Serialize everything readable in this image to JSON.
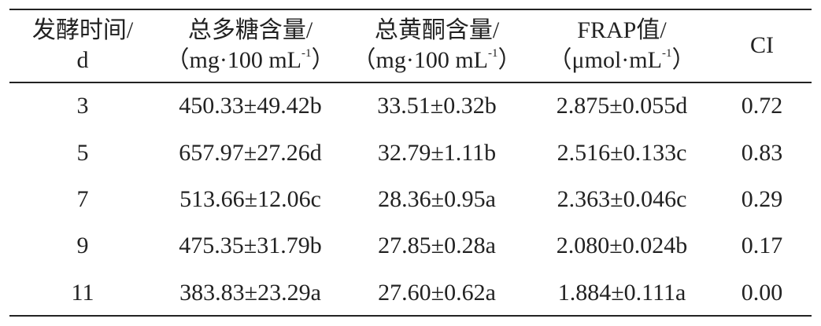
{
  "table": {
    "header": [
      {
        "lines": [
          {
            "text": "发酵时间/"
          },
          {
            "text": "d"
          }
        ]
      },
      {
        "lines": [
          {
            "text": "总多糖含量/"
          },
          {
            "text": "（mg·100 mL",
            "sup": "-1",
            "tail": "）"
          }
        ]
      },
      {
        "lines": [
          {
            "text": "总黄酮含量/"
          },
          {
            "text": "（mg·100 mL",
            "sup": "-1",
            "tail": "）"
          }
        ]
      },
      {
        "lines": [
          {
            "text": "FRAP值/"
          },
          {
            "text": "（μmol·mL",
            "sup": "-1",
            "tail": "）"
          }
        ]
      },
      {
        "lines": [
          {
            "text": "CI"
          }
        ]
      }
    ],
    "rows": [
      [
        "3",
        "450.33±49.42b",
        "33.51±0.32b",
        "2.875±0.055d",
        "0.72"
      ],
      [
        "5",
        "657.97±27.26d",
        "32.79±1.11b",
        "2.516±0.133c",
        "0.83"
      ],
      [
        "7",
        "513.66±12.06c",
        "28.36±0.95a",
        "2.363±0.046c",
        "0.29"
      ],
      [
        "9",
        "475.35±31.79b",
        "27.85±0.28a",
        "2.080±0.024b",
        "0.17"
      ],
      [
        "11",
        "383.83±23.29a",
        "27.60±0.62a",
        "1.884±0.111a",
        "0.00"
      ]
    ]
  }
}
